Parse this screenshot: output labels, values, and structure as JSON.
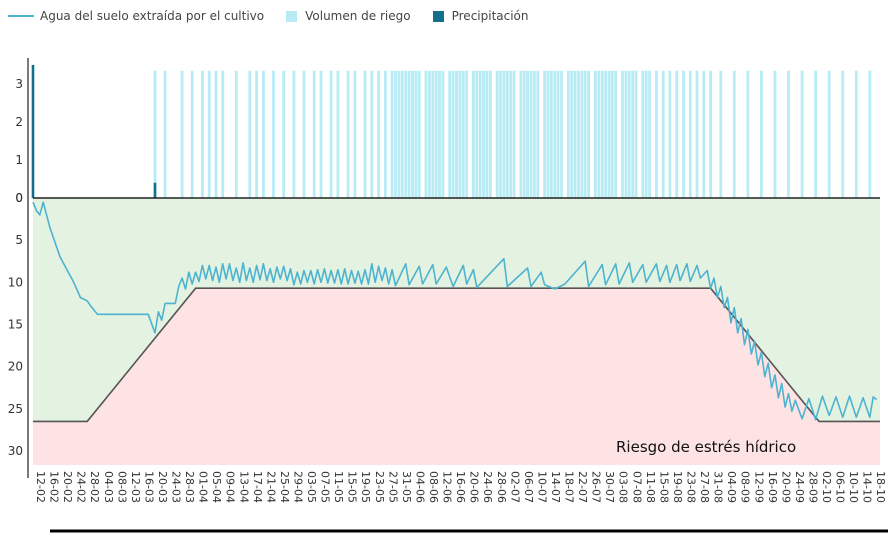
{
  "chart_data": {
    "type": "line",
    "legend": [
      {
        "name": "Agua del suelo extraída por el cultivo",
        "kind": "line",
        "color": "#4db3cf"
      },
      {
        "name": "Volumen de riego",
        "kind": "box",
        "color": "#b8ecf5"
      },
      {
        "name": "Precipitación",
        "kind": "box",
        "color": "#146f8a"
      }
    ],
    "top_axis": {
      "ticks": [
        "3",
        "2",
        "1",
        "0"
      ],
      "ylim": [
        0,
        3.5
      ]
    },
    "bottom_axis": {
      "ticks": [
        "0",
        "5",
        "10",
        "15",
        "20",
        "25",
        "30"
      ],
      "ylim": [
        0,
        32
      ]
    },
    "annotation": "Riesgo de estrés hídrico",
    "colors": {
      "comfort_zone": "#e4f2e2",
      "risk_zone": "#fde3e3",
      "threshold": "#555555",
      "extraction": "#4db3cf",
      "irrigation": "#b8ecf5",
      "rain": "#146f8a"
    },
    "x_dates": [
      "12-02",
      "16-02",
      "20-02",
      "24-02",
      "28-02",
      "04-03",
      "08-03",
      "12-03",
      "16-03",
      "20-03",
      "24-03",
      "28-03",
      "01-04",
      "05-04",
      "09-04",
      "13-04",
      "17-04",
      "21-04",
      "25-04",
      "29-04",
      "03-05",
      "07-05",
      "11-05",
      "15-05",
      "19-05",
      "23-05",
      "27-05",
      "31-05",
      "04-06",
      "08-06",
      "12-06",
      "16-06",
      "20-06",
      "24-06",
      "28-06",
      "02-07",
      "06-07",
      "10-07",
      "14-07",
      "18-07",
      "22-07",
      "26-07",
      "30-07",
      "03-08",
      "07-08",
      "11-08",
      "15-08",
      "19-08",
      "23-08",
      "27-08",
      "31-08",
      "04-09",
      "08-09",
      "12-09",
      "16-09",
      "20-09",
      "24-09",
      "28-09",
      "02-10",
      "06-10",
      "10-10",
      "14-10",
      "18-10"
    ],
    "threshold": [
      {
        "date": "12-02",
        "value": 26.5
      },
      {
        "date": "28-02",
        "value": 26.5
      },
      {
        "date": "01-04",
        "value": 10.7
      },
      {
        "date": "31-08",
        "value": 10.7
      },
      {
        "date": "02-10",
        "value": 26.5
      },
      {
        "date": "20-10",
        "value": 26.5
      }
    ],
    "precipitation": [
      {
        "date": "12-02",
        "value": 3.5
      },
      {
        "date": "20-03",
        "value": 0.4
      }
    ],
    "irrigation": {
      "value": 3.35,
      "dates": [
        "20-03",
        "23-03",
        "28-03",
        "31-03",
        "03-04",
        "05-04",
        "07-04",
        "09-04",
        "13-04",
        "17-04",
        "19-04",
        "21-04",
        "24-04",
        "27-04",
        "30-04",
        "03-05",
        "06-05",
        "08-05",
        "11-05",
        "13-05",
        "16-05",
        "18-05",
        "21-05",
        "23-05",
        "25-05",
        "27-05",
        "29-05",
        "30-05",
        "31-05",
        "01-06",
        "02-06",
        "03-06",
        "04-06",
        "05-06",
        "06-06",
        "08-06",
        "09-06",
        "10-06",
        "11-06",
        "12-06",
        "13-06",
        "15-06",
        "16-06",
        "17-06",
        "18-06",
        "19-06",
        "20-06",
        "22-06",
        "23-06",
        "24-06",
        "25-06",
        "26-06",
        "27-06",
        "29-06",
        "30-06",
        "01-07",
        "02-07",
        "03-07",
        "04-07",
        "06-07",
        "07-07",
        "08-07",
        "09-07",
        "10-07",
        "11-07",
        "13-07",
        "14-07",
        "15-07",
        "16-07",
        "17-07",
        "18-07",
        "20-07",
        "21-07",
        "22-07",
        "23-07",
        "24-07",
        "25-07",
        "26-07",
        "28-07",
        "29-07",
        "30-07",
        "31-07",
        "01-08",
        "02-08",
        "03-08",
        "05-08",
        "06-08",
        "07-08",
        "08-08",
        "09-08",
        "11-08",
        "12-08",
        "13-08",
        "15-08",
        "17-08",
        "19-08",
        "21-08",
        "23-08",
        "25-08",
        "27-08",
        "29-08",
        "31-08",
        "03-09",
        "07-09",
        "11-09",
        "15-09",
        "19-09",
        "23-09",
        "27-09",
        "01-10",
        "05-10",
        "09-10",
        "13-10",
        "17-10"
      ]
    },
    "extraction": [
      {
        "date": "12-02",
        "value": 0.5
      },
      {
        "date": "13-02",
        "value": 1.5
      },
      {
        "date": "14-02",
        "value": 2.0
      },
      {
        "date": "15-02",
        "value": 0.5
      },
      {
        "date": "17-02",
        "value": 3.5
      },
      {
        "date": "20-02",
        "value": 7.0
      },
      {
        "date": "24-02",
        "value": 10.0
      },
      {
        "date": "26-02",
        "value": 11.8
      },
      {
        "date": "28-02",
        "value": 12.2
      },
      {
        "date": "01-03",
        "value": 12.8
      },
      {
        "date": "03-03",
        "value": 13.8
      },
      {
        "date": "18-03",
        "value": 13.8
      },
      {
        "date": "20-03",
        "value": 16.0
      },
      {
        "date": "21-03",
        "value": 13.5
      },
      {
        "date": "22-03",
        "value": 14.5
      },
      {
        "date": "23-03",
        "value": 12.5
      },
      {
        "date": "26-03",
        "value": 12.5
      },
      {
        "date": "27-03",
        "value": 10.5
      },
      {
        "date": "28-03",
        "value": 9.5
      },
      {
        "date": "29-03",
        "value": 10.8
      },
      {
        "date": "30-03",
        "value": 8.8
      },
      {
        "date": "31-03",
        "value": 10.2
      },
      {
        "date": "01-04",
        "value": 8.8
      },
      {
        "date": "02-04",
        "value": 9.9
      },
      {
        "date": "03-04",
        "value": 8.0
      },
      {
        "date": "04-04",
        "value": 9.6
      },
      {
        "date": "05-04",
        "value": 8.0
      },
      {
        "date": "06-04",
        "value": 9.8
      },
      {
        "date": "07-04",
        "value": 8.2
      },
      {
        "date": "08-04",
        "value": 10.0
      },
      {
        "date": "09-04",
        "value": 7.8
      },
      {
        "date": "10-04",
        "value": 9.6
      },
      {
        "date": "11-04",
        "value": 7.8
      },
      {
        "date": "12-04",
        "value": 9.8
      },
      {
        "date": "13-04",
        "value": 8.3
      },
      {
        "date": "14-04",
        "value": 10.0
      },
      {
        "date": "15-04",
        "value": 7.7
      },
      {
        "date": "16-04",
        "value": 9.8
      },
      {
        "date": "17-04",
        "value": 8.3
      },
      {
        "date": "18-04",
        "value": 10.0
      },
      {
        "date": "19-04",
        "value": 8.0
      },
      {
        "date": "20-04",
        "value": 9.7
      },
      {
        "date": "21-04",
        "value": 7.8
      },
      {
        "date": "22-04",
        "value": 9.8
      },
      {
        "date": "23-04",
        "value": 8.4
      },
      {
        "date": "24-04",
        "value": 10.0
      },
      {
        "date": "25-04",
        "value": 8.2
      },
      {
        "date": "26-04",
        "value": 9.6
      },
      {
        "date": "27-04",
        "value": 8.1
      },
      {
        "date": "28-04",
        "value": 9.8
      },
      {
        "date": "29-04",
        "value": 8.4
      },
      {
        "date": "30-04",
        "value": 10.3
      },
      {
        "date": "01-05",
        "value": 8.8
      },
      {
        "date": "02-05",
        "value": 10.2
      },
      {
        "date": "03-05",
        "value": 8.6
      },
      {
        "date": "04-05",
        "value": 10.0
      },
      {
        "date": "05-05",
        "value": 8.6
      },
      {
        "date": "06-05",
        "value": 10.2
      },
      {
        "date": "07-05",
        "value": 8.5
      },
      {
        "date": "08-05",
        "value": 10.0
      },
      {
        "date": "09-05",
        "value": 8.4
      },
      {
        "date": "10-05",
        "value": 10.1
      },
      {
        "date": "11-05",
        "value": 8.6
      },
      {
        "date": "12-05",
        "value": 10.1
      },
      {
        "date": "13-05",
        "value": 8.5
      },
      {
        "date": "14-05",
        "value": 10.2
      },
      {
        "date": "15-05",
        "value": 8.4
      },
      {
        "date": "16-05",
        "value": 10.2
      },
      {
        "date": "17-05",
        "value": 8.6
      },
      {
        "date": "18-05",
        "value": 10.1
      },
      {
        "date": "19-05",
        "value": 8.7
      },
      {
        "date": "20-05",
        "value": 10.2
      },
      {
        "date": "21-05",
        "value": 8.5
      },
      {
        "date": "22-05",
        "value": 10.2
      },
      {
        "date": "23-05",
        "value": 7.8
      },
      {
        "date": "24-05",
        "value": 10.0
      },
      {
        "date": "25-05",
        "value": 8.1
      },
      {
        "date": "26-05",
        "value": 9.8
      },
      {
        "date": "27-05",
        "value": 8.3
      },
      {
        "date": "28-05",
        "value": 10.2
      },
      {
        "date": "29-05",
        "value": 8.5
      },
      {
        "date": "30-05",
        "value": 10.4
      },
      {
        "date": "02-06",
        "value": 7.8
      },
      {
        "date": "03-06",
        "value": 10.3
      },
      {
        "date": "06-06",
        "value": 8.1
      },
      {
        "date": "07-06",
        "value": 10.2
      },
      {
        "date": "10-06",
        "value": 7.9
      },
      {
        "date": "11-06",
        "value": 10.2
      },
      {
        "date": "14-06",
        "value": 8.2
      },
      {
        "date": "16-06",
        "value": 10.5
      },
      {
        "date": "19-06",
        "value": 8.0
      },
      {
        "date": "20-06",
        "value": 10.2
      },
      {
        "date": "22-06",
        "value": 8.5
      },
      {
        "date": "23-06",
        "value": 10.6
      },
      {
        "date": "01-07",
        "value": 7.2
      },
      {
        "date": "02-07",
        "value": 10.5
      },
      {
        "date": "08-07",
        "value": 8.3
      },
      {
        "date": "09-07",
        "value": 10.5
      },
      {
        "date": "12-07",
        "value": 8.8
      },
      {
        "date": "13-07",
        "value": 10.3
      },
      {
        "date": "16-07",
        "value": 10.8
      },
      {
        "date": "19-07",
        "value": 10.2
      },
      {
        "date": "25-07",
        "value": 7.5
      },
      {
        "date": "26-07",
        "value": 10.5
      },
      {
        "date": "30-07",
        "value": 7.9
      },
      {
        "date": "31-07",
        "value": 10.3
      },
      {
        "date": "03-08",
        "value": 7.8
      },
      {
        "date": "04-08",
        "value": 10.2
      },
      {
        "date": "07-08",
        "value": 7.7
      },
      {
        "date": "08-08",
        "value": 10.0
      },
      {
        "date": "11-08",
        "value": 7.9
      },
      {
        "date": "12-08",
        "value": 10.0
      },
      {
        "date": "15-08",
        "value": 7.8
      },
      {
        "date": "16-08",
        "value": 9.9
      },
      {
        "date": "18-08",
        "value": 8.0
      },
      {
        "date": "19-08",
        "value": 10.0
      },
      {
        "date": "21-08",
        "value": 7.9
      },
      {
        "date": "22-08",
        "value": 9.8
      },
      {
        "date": "24-08",
        "value": 7.8
      },
      {
        "date": "25-08",
        "value": 9.9
      },
      {
        "date": "27-08",
        "value": 8.0
      },
      {
        "date": "28-08",
        "value": 9.5
      },
      {
        "date": "30-08",
        "value": 8.6
      },
      {
        "date": "31-08",
        "value": 10.7
      },
      {
        "date": "01-09",
        "value": 9.5
      },
      {
        "date": "02-09",
        "value": 11.8
      },
      {
        "date": "03-09",
        "value": 10.5
      },
      {
        "date": "04-09",
        "value": 13.0
      },
      {
        "date": "05-09",
        "value": 11.8
      },
      {
        "date": "06-09",
        "value": 14.8
      },
      {
        "date": "07-09",
        "value": 13.0
      },
      {
        "date": "08-09",
        "value": 16.0
      },
      {
        "date": "09-09",
        "value": 14.3
      },
      {
        "date": "10-09",
        "value": 17.4
      },
      {
        "date": "11-09",
        "value": 15.6
      },
      {
        "date": "12-09",
        "value": 18.5
      },
      {
        "date": "13-09",
        "value": 17.0
      },
      {
        "date": "14-09",
        "value": 19.8
      },
      {
        "date": "15-09",
        "value": 18.3
      },
      {
        "date": "16-09",
        "value": 21.2
      },
      {
        "date": "17-09",
        "value": 19.6
      },
      {
        "date": "18-09",
        "value": 22.5
      },
      {
        "date": "19-09",
        "value": 21.0
      },
      {
        "date": "20-09",
        "value": 23.7
      },
      {
        "date": "21-09",
        "value": 22.0
      },
      {
        "date": "22-09",
        "value": 24.8
      },
      {
        "date": "23-09",
        "value": 23.2
      },
      {
        "date": "24-09",
        "value": 25.3
      },
      {
        "date": "25-09",
        "value": 24.0
      },
      {
        "date": "27-09",
        "value": 26.2
      },
      {
        "date": "29-09",
        "value": 23.8
      },
      {
        "date": "01-10",
        "value": 26.3
      },
      {
        "date": "03-10",
        "value": 23.5
      },
      {
        "date": "05-10",
        "value": 25.8
      },
      {
        "date": "07-10",
        "value": 23.6
      },
      {
        "date": "09-10",
        "value": 26.0
      },
      {
        "date": "11-10",
        "value": 23.5
      },
      {
        "date": "13-10",
        "value": 26.0
      },
      {
        "date": "15-10",
        "value": 23.7
      },
      {
        "date": "17-10",
        "value": 26.0
      },
      {
        "date": "18-10",
        "value": 23.6
      },
      {
        "date": "19-10",
        "value": 23.9
      }
    ]
  }
}
